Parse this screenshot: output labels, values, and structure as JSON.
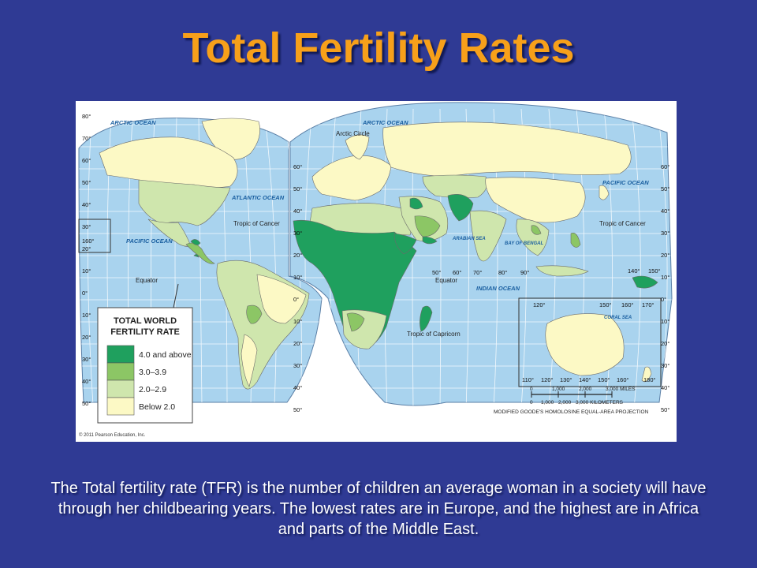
{
  "slide": {
    "title": "Total Fertility Rates",
    "caption": "The Total fertility rate (TFR) is the number of children an average woman in a society will have through her childbearing years. The lowest rates are in Europe, and the highest are in Africa and parts of the Middle East."
  },
  "colors": {
    "background": "#2f3a94",
    "title": "#f7a01a",
    "ocean": "#a9d3ee",
    "graticule": "#ffffff",
    "tfr_4_plus": "#1fa05e",
    "tfr_3_to_3_9": "#8cc665",
    "tfr_2_to_2_9": "#cfe6ad",
    "tfr_below_2": "#fcf9c5"
  },
  "map": {
    "ocean_labels": {
      "arctic_w": "ARCTIC OCEAN",
      "arctic_e": "ARCTIC OCEAN",
      "atlantic": "ATLANTIC OCEAN",
      "pacific_w": "PACIFIC OCEAN",
      "pacific_e": "PACIFIC OCEAN",
      "indian": "INDIAN OCEAN",
      "arabian_sea": "ARABIAN SEA",
      "bay_of_bengal": "BAY OF BENGAL",
      "coral_sea": "CORAL SEA"
    },
    "lines": {
      "arctic_circle": "Arctic Circle",
      "tropic_cancer_w": "Tropic of Cancer",
      "tropic_cancer_e": "Tropic of Cancer",
      "equator_w": "Equator",
      "equator_e": "Equator",
      "tropic_capricorn": "Tropic of Capricorn"
    },
    "lat_labels_left": [
      "80°",
      "70°",
      "60°",
      "50°",
      "40°",
      "30°",
      "20°",
      "10°",
      "0°",
      "10°",
      "20°",
      "30°",
      "40°",
      "50°"
    ],
    "lat_labels_mid": [
      "60°",
      "50°",
      "40°",
      "30°",
      "20°",
      "10°",
      "0°",
      "10°",
      "20°",
      "30°",
      "40°",
      "50°"
    ],
    "lat_labels_right": [
      "60°",
      "50°",
      "40°",
      "30°",
      "20°",
      "10°",
      "0°",
      "10°",
      "20°",
      "30°",
      "40°",
      "50°"
    ],
    "lon_labels_mid": [
      "50°",
      "60°",
      "70°",
      "80°",
      "90°"
    ],
    "lon_labels_inset_top": [
      "120°",
      "150°",
      "160°",
      "170°"
    ],
    "lon_labels_inset_bottom": [
      "110°",
      "120°",
      "130°",
      "140°",
      "150°",
      "160°",
      "180°"
    ],
    "lon_labels_misc": [
      "160°",
      "140°",
      "150°"
    ],
    "legend": {
      "title_line1": "TOTAL WORLD",
      "title_line2": "FERTILITY RATE",
      "items": [
        "4.0 and above",
        "3.0–3.9",
        "2.0–2.9",
        "Below 2.0"
      ]
    },
    "scale": {
      "miles": [
        "0",
        "1,000",
        "2,000",
        "3,000 MILES"
      ],
      "km": [
        "0",
        "1,000",
        "2,000",
        "3,000 KILOMETERS"
      ]
    },
    "projection": "MODIFIED GOODE'S HOMOLOSINE EQUAL-AREA PROJECTION",
    "copyright": "© 2011 Pearson Education, Inc."
  }
}
